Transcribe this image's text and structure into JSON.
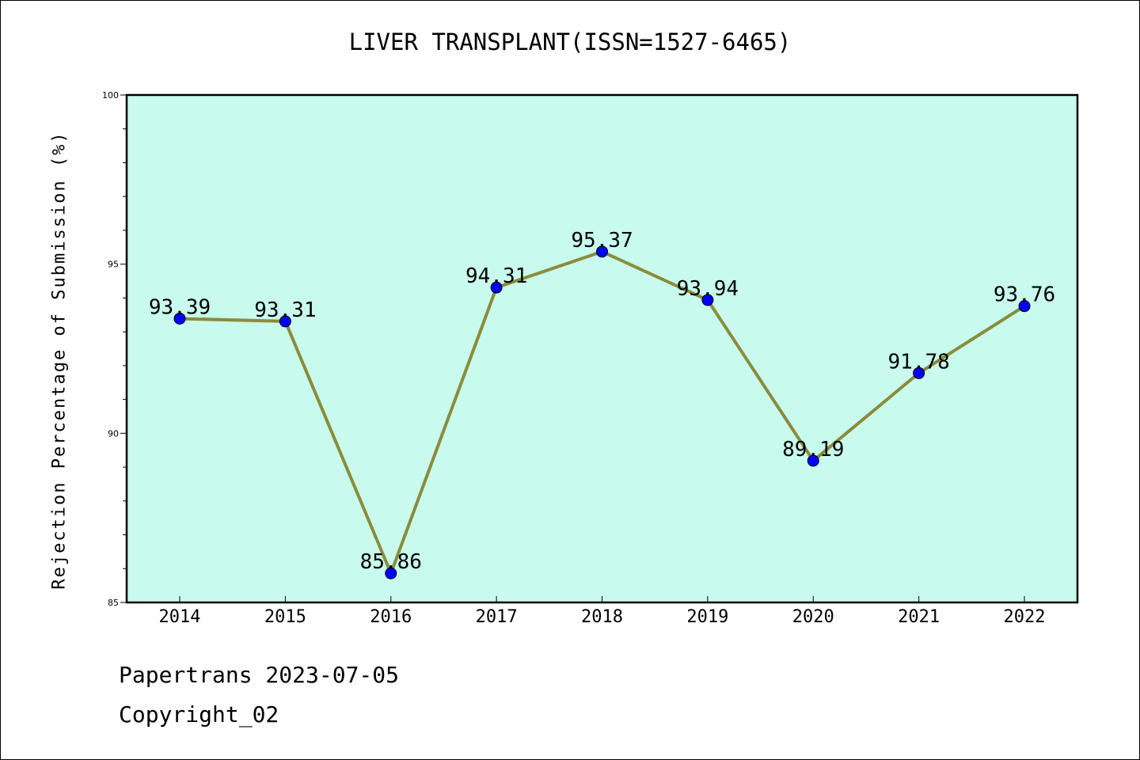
{
  "chart_data": {
    "type": "line",
    "title": "LIVER TRANSPLANT(ISSN=1527-6465)",
    "xlabel": "",
    "ylabel": "Rejection Percentage of Submission (%)",
    "categories": [
      "2014",
      "2015",
      "2016",
      "2017",
      "2018",
      "2019",
      "2020",
      "2021",
      "2022"
    ],
    "series": [
      {
        "values": [
          93.39,
          93.31,
          85.86,
          94.31,
          95.37,
          93.94,
          89.19,
          91.78,
          93.76
        ]
      }
    ],
    "data_labels": [
      "93.39",
      "93.31",
      "85.86",
      "94.31",
      "95.37",
      "93.94",
      "89.19",
      "91.78",
      "93.76"
    ],
    "ylim": [
      85,
      100
    ],
    "y_ticks": [
      85,
      90,
      95,
      100
    ],
    "y_tick_labels": [
      "85",
      "90",
      "95",
      "100"
    ],
    "grid": false,
    "colors": {
      "plot_background": "#c8faed",
      "line": "#8b8b3a",
      "marker": "#0000ff"
    }
  },
  "footer": {
    "line1": "Papertrans 2023-07-05",
    "line2": "Copyright_02"
  }
}
